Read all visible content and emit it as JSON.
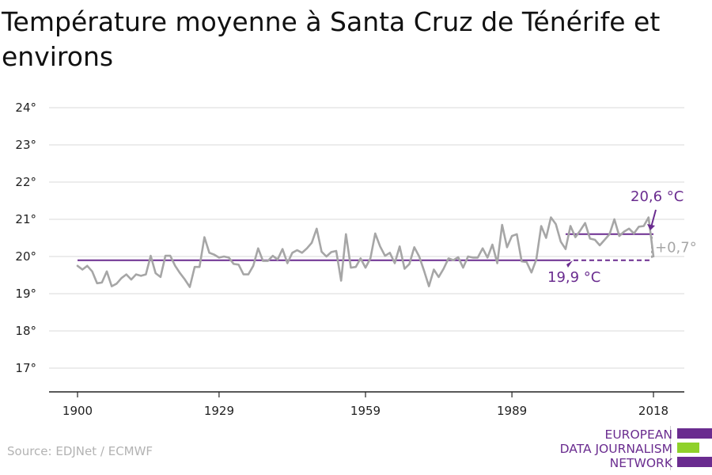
{
  "title": "Température moyenne à Santa Cruz de Ténérife et environs",
  "source": "Source: EDJNet / ECMWF",
  "logo": {
    "lines": [
      "EUROPEAN",
      "DATA JOURNALISM",
      "NETWORK"
    ],
    "colors": {
      "purple": "#6a2c8f",
      "green": "#8fd12a"
    }
  },
  "colors": {
    "series": "#a6a6a6",
    "reference": "#6a2c8f",
    "grid": "#d9d9d9",
    "axis": "#222222",
    "change_label": "#a6a6a6"
  },
  "chart_data": {
    "type": "line",
    "title": "Température moyenne à Santa Cruz de Ténérife et environs",
    "xlabel": "",
    "ylabel": "",
    "xlim": [
      1900,
      2018
    ],
    "ylim": [
      16.5,
      24.5
    ],
    "y_ticks": [
      17,
      18,
      19,
      20,
      21,
      22,
      23,
      24
    ],
    "y_tick_labels": [
      "17°",
      "18°",
      "19°",
      "20°",
      "21°",
      "22°",
      "23°",
      "24°"
    ],
    "x_ticks": [
      1900,
      1929,
      1959,
      1989,
      2018
    ],
    "x_tick_labels": [
      "1900",
      "1929",
      "1959",
      "1989",
      "2018"
    ],
    "grid": "horizontal",
    "series": [
      {
        "x": [
          1900,
          1901,
          1902,
          1903,
          1904,
          1905,
          1906,
          1907,
          1908,
          1909,
          1910,
          1911,
          1912,
          1913,
          1914,
          1915,
          1916,
          1917,
          1918,
          1919,
          1920,
          1921,
          1922,
          1923,
          1924,
          1925,
          1926,
          1927,
          1928,
          1929,
          1930,
          1931,
          1932,
          1933,
          1934,
          1935,
          1936,
          1937,
          1938,
          1939,
          1940,
          1941,
          1942,
          1943,
          1944,
          1945,
          1946,
          1947,
          1948,
          1949,
          1950,
          1951,
          1952,
          1953,
          1954,
          1955,
          1956,
          1957,
          1958,
          1959,
          1960,
          1961,
          1962,
          1963,
          1964,
          1965,
          1966,
          1967,
          1968,
          1969,
          1970,
          1971,
          1972,
          1973,
          1974,
          1975,
          1976,
          1977,
          1978,
          1979,
          1980,
          1981,
          1982,
          1983,
          1984,
          1985,
          1986,
          1987,
          1988,
          1989,
          1990,
          1991,
          1992,
          1993,
          1994,
          1995,
          1996,
          1997,
          1998,
          1999,
          2000,
          2001,
          2002,
          2003,
          2004,
          2005,
          2006,
          2007,
          2008,
          2009,
          2010,
          2011,
          2012,
          2013,
          2014,
          2015,
          2016,
          2017,
          2018
        ],
        "values": [
          19.75,
          19.65,
          19.75,
          19.6,
          19.28,
          19.3,
          19.6,
          19.2,
          19.27,
          19.42,
          19.52,
          19.38,
          19.52,
          19.48,
          19.52,
          20.02,
          19.55,
          19.45,
          20.02,
          20.02,
          19.75,
          19.55,
          19.38,
          19.18,
          19.72,
          19.72,
          20.52,
          20.1,
          20.05,
          19.97,
          20.0,
          19.97,
          19.8,
          19.78,
          19.52,
          19.52,
          19.75,
          20.22,
          19.88,
          19.88,
          20.02,
          19.92,
          20.2,
          19.82,
          20.1,
          20.17,
          20.1,
          20.22,
          20.37,
          20.75,
          20.13,
          20.0,
          20.12,
          20.15,
          19.35,
          20.6,
          19.7,
          19.72,
          19.95,
          19.7,
          19.95,
          20.62,
          20.27,
          20.02,
          20.1,
          19.82,
          20.27,
          19.67,
          19.8,
          20.25,
          20.0,
          19.62,
          19.2,
          19.65,
          19.45,
          19.67,
          19.95,
          19.9,
          19.98,
          19.7,
          20.0,
          19.97,
          19.97,
          20.22,
          19.97,
          20.32,
          19.82,
          20.85,
          20.25,
          20.55,
          20.6,
          19.87,
          19.85,
          19.57,
          19.92,
          20.82,
          20.5,
          21.05,
          20.87,
          20.4,
          20.2,
          20.82,
          20.52,
          20.7,
          20.9,
          20.48,
          20.45,
          20.3,
          20.45,
          20.6,
          21.0,
          20.55,
          20.67,
          20.75,
          20.62,
          20.8,
          20.82,
          21.05,
          20.0
        ]
      }
    ],
    "reference_lines": [
      {
        "x_start": 1900,
        "x_end": 2018,
        "value": 19.9,
        "style": "solid-then-dashed",
        "dash_from": 2000,
        "label": "19,9 °C"
      },
      {
        "x_start": 2000,
        "x_end": 2018,
        "value": 20.6,
        "style": "solid",
        "label": "20,6 °C"
      }
    ],
    "change_label": "+0,7°"
  }
}
